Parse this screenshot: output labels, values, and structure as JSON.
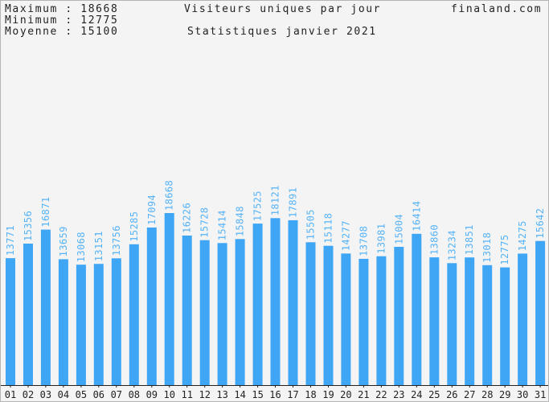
{
  "header": {
    "max_label": "Maximum",
    "max_value": "18668",
    "min_label": "Minimum",
    "min_value": "12775",
    "avg_label": "Moyenne",
    "avg_value": "15100",
    "title": "Visiteurs uniques par jour",
    "subtitle": "Statistiques janvier 2021",
    "site": "finaland.com"
  },
  "colors": {
    "bar": "#3fa6f6",
    "label": "#56b3f6",
    "axis": "#222222",
    "background": "#f4f4f4",
    "border": "#b5b5b5"
  },
  "chart_data": {
    "type": "bar",
    "title": "Visiteurs uniques par jour",
    "subtitle": "Statistiques janvier 2021",
    "categories": [
      "01",
      "02",
      "03",
      "04",
      "05",
      "06",
      "07",
      "08",
      "09",
      "10",
      "11",
      "12",
      "13",
      "14",
      "15",
      "16",
      "17",
      "18",
      "19",
      "20",
      "21",
      "22",
      "23",
      "24",
      "25",
      "26",
      "27",
      "28",
      "29",
      "30",
      "31"
    ],
    "values": [
      13771,
      15356,
      16871,
      13659,
      13068,
      13151,
      13756,
      15285,
      17094,
      18668,
      16226,
      15728,
      15414,
      15848,
      17525,
      18121,
      17891,
      15505,
      15118,
      14277,
      13708,
      13981,
      15004,
      16414,
      13860,
      13234,
      13851,
      13018,
      12775,
      14275,
      15642
    ],
    "ylim": [
      0,
      37336
    ],
    "grid": false,
    "legend": "none"
  }
}
